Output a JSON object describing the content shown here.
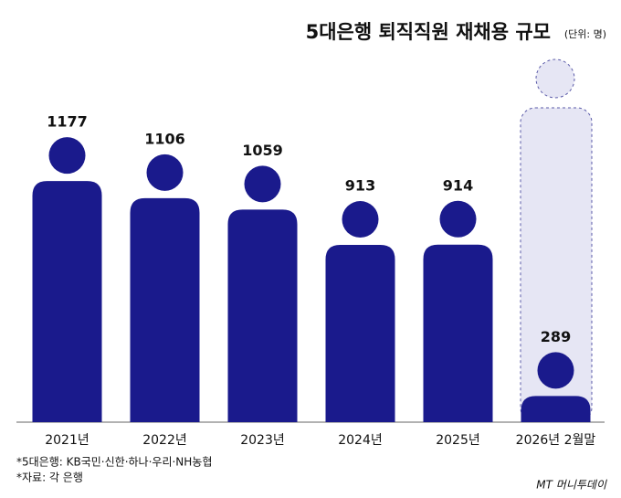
{
  "chart_data": {
    "type": "pictogram",
    "title": "5대은행 퇴직직원 재채용 규모",
    "unit": "(단위: 명)",
    "categories": [
      "2021년",
      "2022년",
      "2023년",
      "2024년",
      "2025년",
      "2026년 2월말"
    ],
    "values": [
      1177,
      1106,
      1059,
      913,
      914,
      289
    ],
    "color": "#1a1a8c",
    "notes": [
      "*5대은행: KB국민·신한·하나·우리·NH농협",
      "*자료: 각 은행"
    ],
    "logo": "MT 머니투데이"
  }
}
